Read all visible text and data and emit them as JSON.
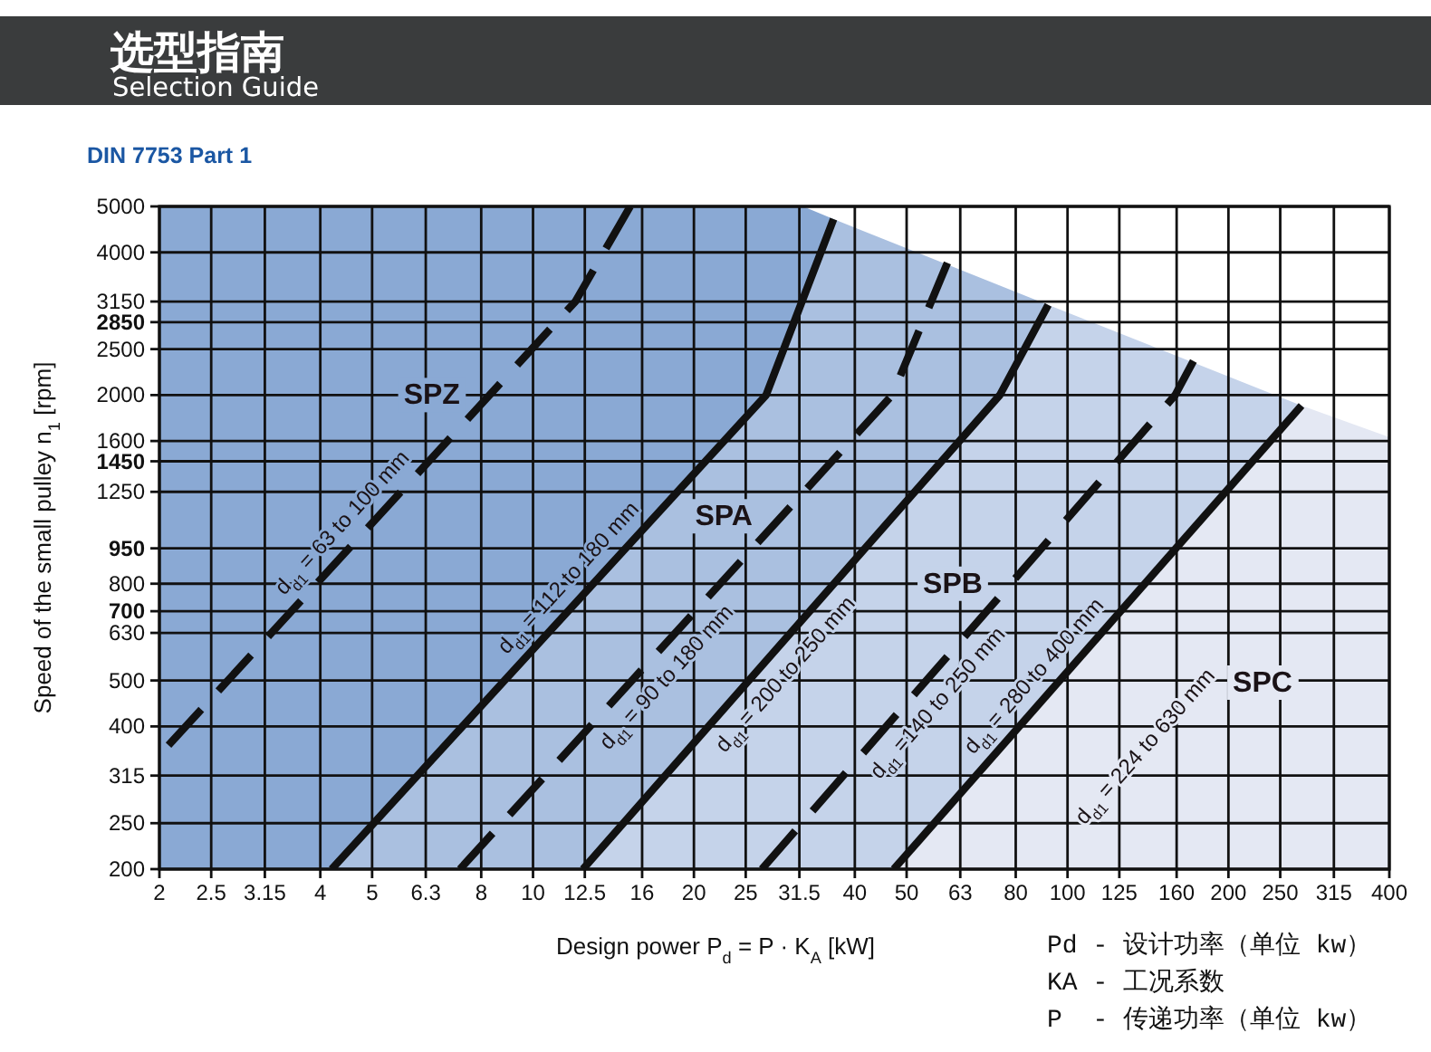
{
  "chart_data": {
    "type": "line",
    "title": "选型指南",
    "subtitle": "Selection Guide",
    "xlabel": "Design power P$_{d}$ = P · K$_{A}$ [kW]",
    "ylabel": "Speed of the small pulley n$_{1}$ [rpm]",
    "log": "xy",
    "grid": true,
    "xlim": [
      2,
      400
    ],
    "xticks": [
      2,
      2.5,
      3.15,
      4,
      5,
      6.3,
      8,
      10,
      12.5,
      16,
      20,
      25,
      31.5,
      40,
      50,
      63,
      80,
      100,
      125,
      160,
      200,
      250,
      315,
      400
    ],
    "ylim": [
      200,
      5000
    ],
    "yticks": [
      200,
      250,
      315,
      400,
      500,
      630,
      {
        "value": 700,
        "label": "**700**"
      },
      800,
      {
        "value": 950,
        "label": "**950**"
      },
      1250,
      {
        "value": 1450,
        "label": "**1450**"
      },
      1600,
      2000,
      2500,
      {
        "value": 2850,
        "label": "**2850**"
      },
      3150,
      4000,
      5000
    ],
    "series": [
      {
        "type": "area",
        "color": "#8aa9d4",
        "x": [
          2,
          32,
          36.5
        ],
        "values": [
          5000,
          5000,
          4700
        ]
      },
      {
        "type": "area",
        "color": "#aac0e0",
        "line_style": "solid",
        "x": [
          4.2,
          27.3,
          36.5,
          92
        ],
        "values": [
          200,
          2000,
          4700,
          3100
        ]
      },
      {
        "type": "area",
        "color": "#c5d3ea",
        "line_style": "solid",
        "x": [
          12.4,
          74.7,
          92,
          274
        ],
        "values": [
          200,
          2000,
          3100,
          1900
        ]
      },
      {
        "type": "area",
        "color": "#e4e8f3",
        "line_style": "solid",
        "x": [
          47.3,
          274,
          400
        ],
        "values": [
          200,
          1900,
          1630
        ]
      },
      {
        "color": "#111111",
        "line_style": "dashed",
        "x": [
          2.08,
          12,
          15.2
        ],
        "values": [
          365,
          3150,
          5000
        ]
      },
      {
        "color": "#111111",
        "line_style": "dashed",
        "x": [
          7.3,
          47,
          59.6
        ],
        "values": [
          200,
          2000,
          3800
        ]
      },
      {
        "color": "#111111",
        "line_style": "dashed",
        "x": [
          26.8,
          159,
          172
        ],
        "values": [
          200,
          2000,
          2360
        ]
      }
    ],
    "annotations": [
      "DIN 7753 Part 1",
      "Pd - 设计功率（单位 kw）",
      "KA - 工况系数",
      "P  - 传递功率（单位 kw）",
      "SPC",
      "d$_{d1}$ = 224 to 630 mm",
      {
        "text": "SPZ",
        "x": 8.3,
        "y": 2000
      },
      {
        "text": "SPA",
        "x": 29.2,
        "y": 1110
      },
      {
        "text": "SPB",
        "x": 78.3,
        "y": 800
      },
      {
        "text": "d$_{d1}$ = 63 to 100 mm",
        "x": 4.72,
        "y": 1000
      },
      {
        "text": "d$_{d1}$ = 112 to 180 mm",
        "x": 12.5,
        "y": 765
      },
      {
        "text": "d$_{d1}$ = 90 to 180 mm",
        "x": 16.5,
        "y": 548
      },
      {
        "text": "d$_{d1}$ = 200 to 250 mm",
        "x": 27.5,
        "y": 555
      },
      {
        "text": "d$_{d1}$ =140 to 250 mm",
        "x": 53,
        "y": 483
      },
      {
        "text": "d$_{d1}$ = 280 to 400 mm",
        "x": 93,
        "y": 476
      }
    ]
  }
}
